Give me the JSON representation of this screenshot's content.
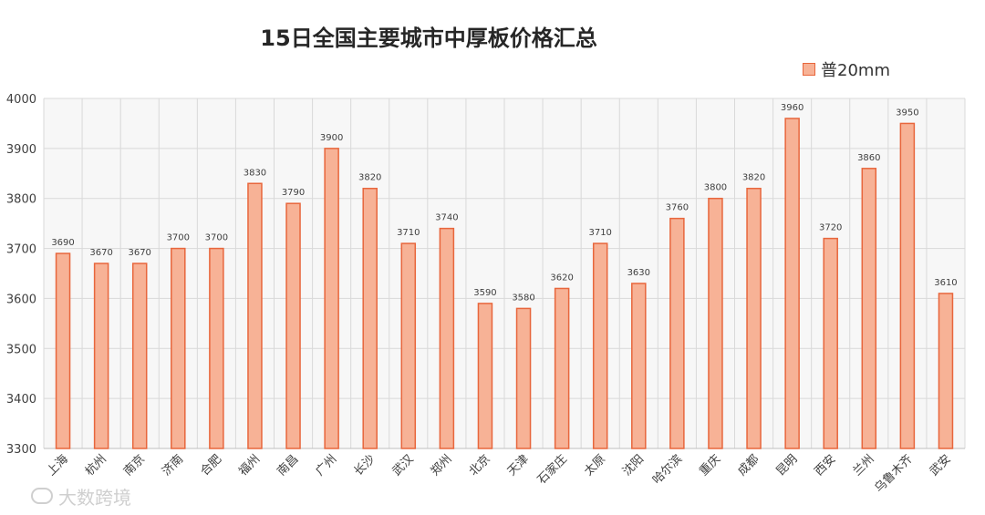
{
  "chart_data": {
    "type": "bar",
    "title": "15日全国主要城市中厚板价格汇总",
    "xlabel": "",
    "ylabel": "",
    "ylim": [
      3300,
      4000
    ],
    "yticks": [
      3300,
      3400,
      3500,
      3600,
      3700,
      3800,
      3900,
      4000
    ],
    "grid": true,
    "legend_position": "top-right",
    "categories": [
      "上海",
      "杭州",
      "南京",
      "济南",
      "合肥",
      "福州",
      "南昌",
      "广州",
      "长沙",
      "武汉",
      "郑州",
      "北京",
      "天津",
      "石家庄",
      "太原",
      "沈阳",
      "哈尔滨",
      "重庆",
      "成都",
      "昆明",
      "西安",
      "兰州",
      "乌鲁木齐",
      "武安"
    ],
    "series": [
      {
        "name": "普20mm",
        "values": [
          3690,
          3670,
          3670,
          3700,
          3700,
          3830,
          3790,
          3900,
          3820,
          3710,
          3740,
          3590,
          3580,
          3620,
          3710,
          3630,
          3760,
          3800,
          3820,
          3960,
          3720,
          3860,
          3950,
          3610
        ]
      }
    ],
    "colors": {
      "bar_fill": "#f7b296",
      "bar_stroke": "#e8663c",
      "grid": "#d9d9d9"
    }
  },
  "watermark": "大数跨境"
}
